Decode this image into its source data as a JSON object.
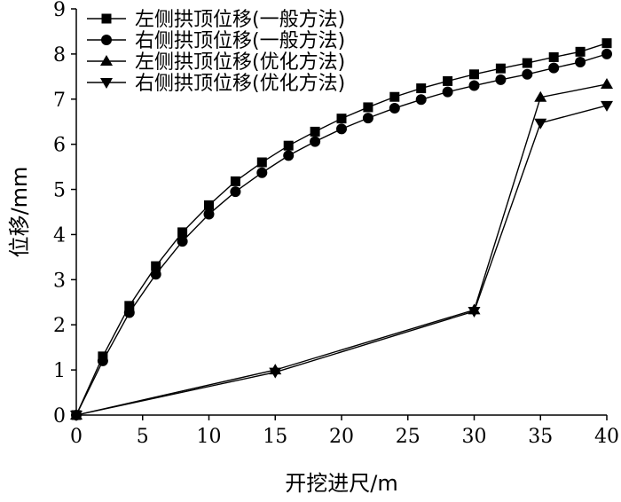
{
  "chart_data": {
    "type": "line",
    "xlabel": "开挖进尺/m",
    "ylabel": "位移/mm",
    "xlim": [
      0,
      40
    ],
    "ylim": [
      0,
      9
    ],
    "xticks": [
      0,
      5,
      10,
      15,
      20,
      25,
      30,
      35,
      40
    ],
    "yticks": [
      0,
      1,
      2,
      3,
      4,
      5,
      6,
      7,
      8,
      9
    ],
    "legend_position": "top-left",
    "series": [
      {
        "name": "左侧拱顶位移(一般方法)",
        "marker": "square",
        "x": [
          0,
          2,
          4,
          6,
          8,
          10,
          12,
          14,
          16,
          18,
          20,
          22,
          24,
          26,
          28,
          30,
          32,
          34,
          36,
          38,
          40
        ],
        "y": [
          0,
          1.3,
          2.42,
          3.3,
          4.05,
          4.65,
          5.18,
          5.6,
          5.97,
          6.28,
          6.57,
          6.82,
          7.05,
          7.24,
          7.4,
          7.55,
          7.68,
          7.8,
          7.93,
          8.05,
          8.24
        ]
      },
      {
        "name": "右侧拱顶位移(一般方法)",
        "marker": "circle",
        "x": [
          0,
          2,
          4,
          6,
          8,
          10,
          12,
          14,
          16,
          18,
          20,
          22,
          24,
          26,
          28,
          30,
          32,
          34,
          36,
          38,
          40
        ],
        "y": [
          0,
          1.2,
          2.27,
          3.12,
          3.85,
          4.45,
          4.95,
          5.37,
          5.75,
          6.06,
          6.34,
          6.58,
          6.8,
          6.99,
          7.16,
          7.3,
          7.43,
          7.55,
          7.69,
          7.82,
          8.0
        ]
      },
      {
        "name": "左侧拱顶位移(优化方法)",
        "marker": "triangle-up",
        "x": [
          0,
          15,
          30,
          35,
          40
        ],
        "y": [
          0,
          1.0,
          2.33,
          7.04,
          7.33
        ]
      },
      {
        "name": "右侧拱顶位移(优化方法)",
        "marker": "triangle-down",
        "x": [
          0,
          15,
          30,
          35,
          40
        ],
        "y": [
          0,
          0.95,
          2.3,
          6.47,
          6.86
        ]
      }
    ]
  }
}
